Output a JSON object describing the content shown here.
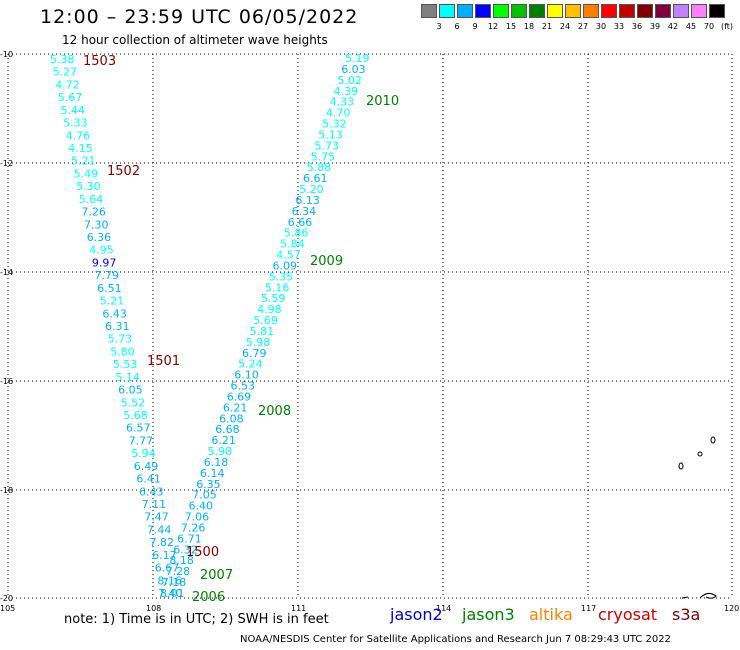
{
  "header": {
    "title": "12:00 – 23:59 UTC 06/05/2022",
    "subtitle": "12 hour collection of altimeter wave heights"
  },
  "legend": {
    "colors": [
      "#808080",
      "#00ffff",
      "#00b0ff",
      "#0000ff",
      "#00ff00",
      "#00c000",
      "#008000",
      "#ffff00",
      "#ffc000",
      "#ff8000",
      "#ff0000",
      "#c00000",
      "#800000",
      "#800040",
      "#c080ff",
      "#ff80ff",
      "#000000"
    ],
    "labels": [
      "3",
      "6",
      "9",
      "12",
      "15",
      "18",
      "21",
      "24",
      "27",
      "30",
      "33",
      "36",
      "39",
      "42",
      "45",
      "70",
      "(ft)"
    ]
  },
  "axes": {
    "y_labels": [
      "-10",
      "-12",
      "-14",
      "-16",
      "-18",
      "-20"
    ],
    "x_labels": [
      "105",
      "108",
      "111",
      "114",
      "117",
      "120"
    ]
  },
  "tracks": [
    {
      "points": [
        "5.38",
        "5.27",
        "4.72",
        "5.67",
        "5.44",
        "5.33",
        "4.76",
        "4.15",
        "5.21",
        "5.49",
        "5.30",
        "5.64",
        "7.26",
        "7.30",
        "6.36",
        "4.95",
        "9.97",
        "7.79",
        "6.51",
        "5.21",
        "6.43",
        "6.31",
        "5.73",
        "5.80",
        "5.53",
        "5.14",
        "6.05",
        "5.52",
        "5.68",
        "6.57",
        "7.77",
        "5.94",
        "6.49",
        "6.41",
        "6.43",
        "7.11",
        "7.47",
        "7.44",
        "7.82",
        "6.17",
        "6.67",
        "8.16",
        "8.01"
      ]
    },
    {
      "points": [
        "5.19",
        "6.03",
        "5.02",
        "4.39",
        "4.33",
        "4.70",
        "5.32",
        "5.13",
        "5.73",
        "5.75",
        "5.88",
        "6.61",
        "5.20",
        "6.13",
        "6.34",
        "6.66",
        "5.86",
        "5.84",
        "4.57",
        "6.09",
        "5.35",
        "5.16",
        "5.59",
        "4.98",
        "5.69",
        "5.81",
        "5.98",
        "6.79",
        "5.24",
        "6.10",
        "6.53",
        "6.69",
        "6.21",
        "6.08",
        "6.68",
        "6.21",
        "5.98",
        "6.18",
        "6.14",
        "6.35",
        "7.05",
        "6.40",
        "7.06",
        "7.26",
        "6.71",
        "6.32",
        "8.18",
        "7.28",
        "7.18",
        "7.40"
      ]
    }
  ],
  "pass_labels": [
    {
      "text": "1503",
      "color": "#800000"
    },
    {
      "text": "1502",
      "color": "#800000"
    },
    {
      "text": "1501",
      "color": "#800000"
    },
    {
      "text": "1500",
      "color": "#800000"
    },
    {
      "text": "2010",
      "color": "#008000"
    },
    {
      "text": "2009",
      "color": "#008000"
    },
    {
      "text": "2008",
      "color": "#008000"
    },
    {
      "text": "2007",
      "color": "#008000"
    },
    {
      "text": "2006",
      "color": "#008000"
    }
  ],
  "note": "note:  1) Time is in UTC; 2) SWH is in feet",
  "satellites": [
    {
      "name": "jason2",
      "color": "#0000cc"
    },
    {
      "name": "jason3",
      "color": "#008000"
    },
    {
      "name": "altika",
      "color": "#ff8000"
    },
    {
      "name": "cryosat",
      "color": "#cc0000"
    },
    {
      "name": "s3a",
      "color": "#800000"
    }
  ],
  "footer": "NOAA/NESDIS Center for Satellite Applications and Research   Jun  7 08:29:43 UTC 2022"
}
